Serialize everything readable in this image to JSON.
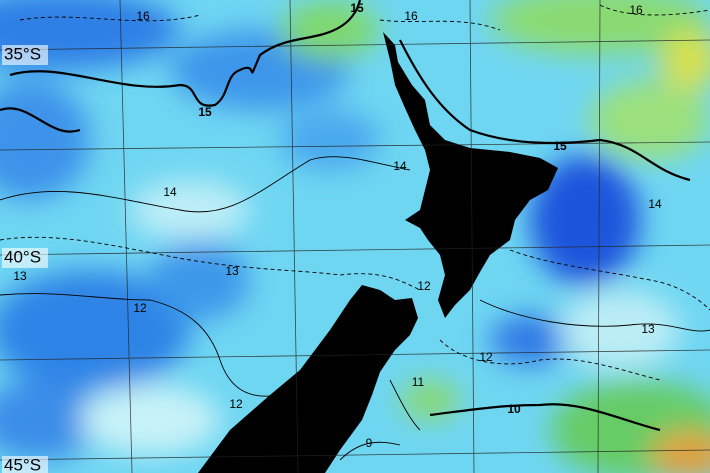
{
  "labels": {
    "latitudes": [
      "35°S",
      "40°S",
      "45°S"
    ],
    "contours": [
      "16",
      "15",
      "16",
      "16",
      "15",
      "14",
      "15",
      "14",
      "14",
      "13",
      "13",
      "12",
      "12",
      "13",
      "12",
      "11",
      "12",
      "10",
      "9"
    ]
  }
}
